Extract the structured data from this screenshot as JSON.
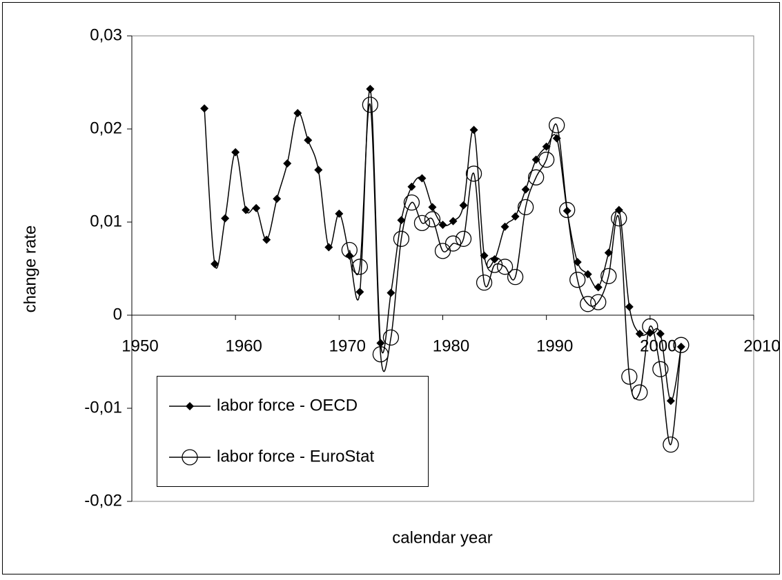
{
  "chart_data": {
    "type": "line",
    "x_label": "calendar year",
    "y_label": "change rate",
    "xlim": [
      1950,
      2010
    ],
    "xticks": [
      1950,
      1960,
      1970,
      1980,
      1990,
      2000,
      2010
    ],
    "ylim": [
      -0.02,
      0.03
    ],
    "yticks": [
      {
        "value": -0.02,
        "label": "-0,02"
      },
      {
        "value": -0.01,
        "label": "-0,01"
      },
      0,
      {
        "value": 0.01,
        "label": "0,01"
      },
      {
        "value": 0.02,
        "label": "0,02"
      },
      {
        "value": 0.03,
        "label": "0,03"
      }
    ],
    "legend": "lower-left",
    "series": [
      {
        "name": "labor force - OECD",
        "color": "#000000",
        "marker": "diamond",
        "x": [
          1957,
          1958,
          1959,
          1960,
          1961,
          1962,
          1963,
          1964,
          1965,
          1966,
          1967,
          1968,
          1969,
          1970,
          1971,
          1972,
          1973,
          1974,
          1975,
          1976,
          1977,
          1978,
          1979,
          1980,
          1981,
          1982,
          1983,
          1984,
          1985,
          1986,
          1987,
          1988,
          1989,
          1990,
          1991,
          1992,
          1993,
          1994,
          1995,
          1996,
          1997,
          1998,
          1999,
          2000,
          2001,
          2002,
          2003
        ],
        "values": [
          0.0222,
          0.0055,
          0.0104,
          0.0175,
          0.0113,
          0.0115,
          0.0081,
          0.0125,
          0.0163,
          0.0217,
          0.0188,
          0.0156,
          0.0073,
          0.0109,
          0.0064,
          0.0025,
          0.0243,
          -0.003,
          0.0024,
          0.0102,
          0.0138,
          0.0147,
          0.0116,
          0.0097,
          0.0101,
          0.0118,
          0.0199,
          0.0064,
          0.006,
          0.0095,
          0.0106,
          0.0135,
          0.0167,
          0.0181,
          0.019,
          0.0112,
          0.0057,
          0.0044,
          0.003,
          0.0067,
          0.0113,
          0.0009,
          -0.002,
          -0.0019,
          -0.002,
          -0.0092,
          -0.0034
        ]
      },
      {
        "name": "labor force - EuroStat",
        "color": "#000000",
        "marker": "circle",
        "x": [
          1971,
          1972,
          1973,
          1974,
          1975,
          1976,
          1977,
          1978,
          1979,
          1980,
          1981,
          1982,
          1983,
          1984,
          1985,
          1986,
          1987,
          1988,
          1989,
          1990,
          1991,
          1992,
          1993,
          1994,
          1995,
          1996,
          1997,
          1998,
          1999,
          2000,
          2001,
          2002,
          2003
        ],
        "values": [
          0.007,
          0.0052,
          0.0226,
          -0.0042,
          -0.0024,
          0.0082,
          0.0121,
          0.0099,
          0.0103,
          0.0069,
          0.0077,
          0.0082,
          0.0152,
          0.0035,
          0.0054,
          0.0052,
          0.0041,
          0.0116,
          0.0148,
          0.0167,
          0.0204,
          0.0113,
          0.0038,
          0.0012,
          0.0014,
          0.0042,
          0.0104,
          -0.0066,
          -0.0083,
          -0.0012,
          -0.0058,
          -0.0139,
          -0.0032
        ]
      }
    ]
  }
}
